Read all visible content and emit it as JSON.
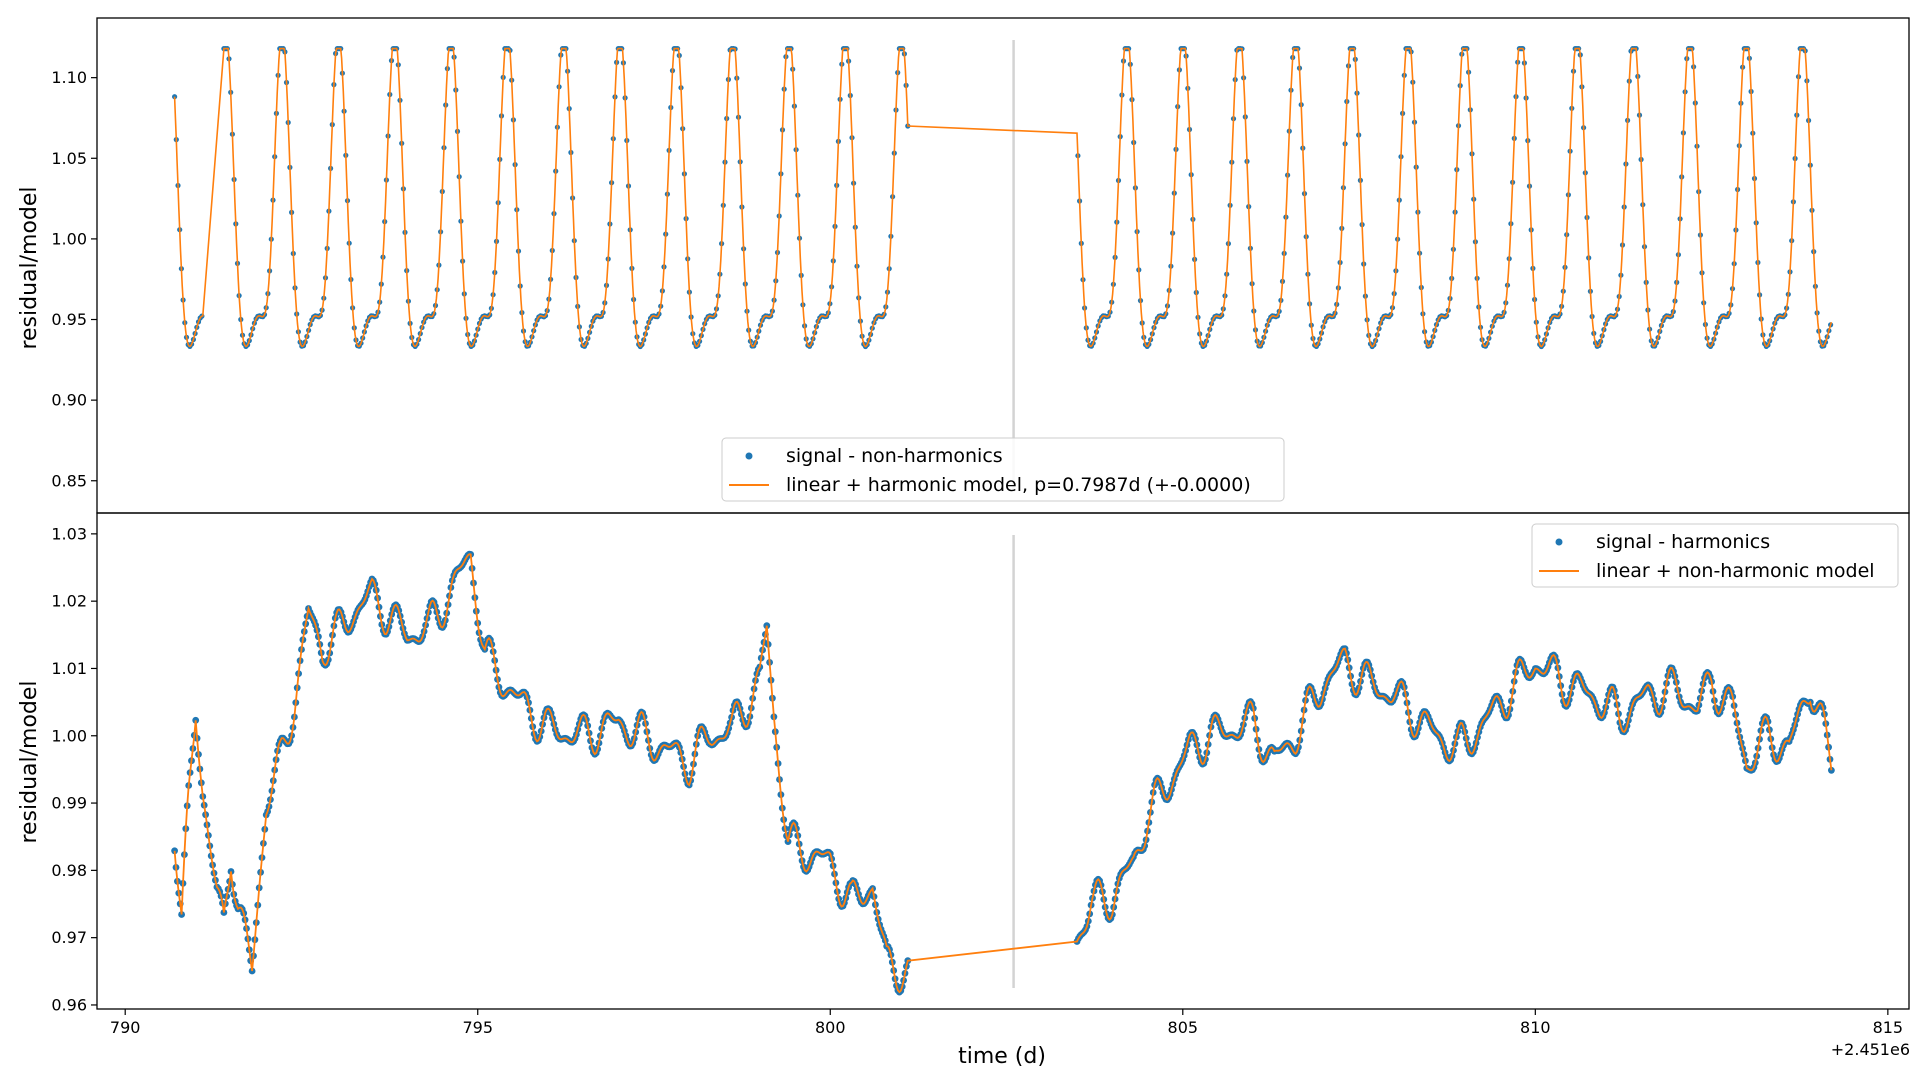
{
  "chart_data": [
    {
      "type": "line",
      "panel": "top",
      "ylabel": "residual/model",
      "xlim": [
        789.6,
        815.3
      ],
      "ylim": [
        0.83,
        1.137
      ],
      "yticks": [
        0.85,
        0.9,
        0.95,
        1.0,
        1.05,
        1.1
      ],
      "ytick_labels": [
        "0.85",
        "0.90",
        "0.95",
        "1.00",
        "1.05",
        "1.10"
      ],
      "grid": false,
      "vline_x": 802.6,
      "legend": {
        "placement": "lower center"
      },
      "period_d": 0.7987,
      "segments": [
        [
          790.7,
          791.1
        ],
        [
          791.4,
          801.1
        ],
        [
          803.5,
          814.2
        ]
      ],
      "series": [
        {
          "name": "signal - non-harmonics",
          "kind": "scatter",
          "color": "#1f77b4"
        },
        {
          "name": "linear + harmonic model, p=0.7987d (+-0.0000)",
          "kind": "line",
          "color": "#ff7f0e"
        }
      ]
    },
    {
      "type": "line",
      "panel": "bottom",
      "xlabel": "time (d)",
      "ylabel": "residual/model",
      "xlim": [
        789.6,
        815.3
      ],
      "ylim": [
        0.9594,
        1.0331
      ],
      "xticks": [
        790,
        795,
        800,
        805,
        810,
        815
      ],
      "xtick_labels": [
        "790",
        "795",
        "800",
        "805",
        "810",
        "815"
      ],
      "x_offset_label": "+2.451e6",
      "yticks": [
        0.96,
        0.97,
        0.98,
        0.99,
        1.0,
        1.01,
        1.02,
        1.03
      ],
      "ytick_labels": [
        "0.96",
        "0.97",
        "0.98",
        "0.99",
        "1.00",
        "1.01",
        "1.02",
        "1.03"
      ],
      "grid": false,
      "vline_x": 802.6,
      "legend": {
        "placement": "upper right"
      },
      "series": [
        {
          "name": "signal - harmonics",
          "kind": "scatter",
          "color": "#1f77b4"
        },
        {
          "name": "linear + non-harmonic model",
          "kind": "line",
          "color": "#ff7f0e"
        }
      ],
      "trend_x": [
        790.7,
        790.8,
        790.9,
        791.0,
        791.1,
        791.3,
        791.4,
        791.5,
        791.6,
        791.8,
        791.9,
        792.0,
        792.2,
        792.4,
        792.6,
        792.8,
        793.0,
        793.2,
        793.5,
        793.8,
        794.0,
        794.3,
        794.6,
        794.9,
        795.1,
        795.3,
        795.6,
        796.0,
        796.5,
        797.0,
        797.5,
        798.0,
        798.3,
        798.6,
        799.0,
        799.1,
        799.2,
        799.4,
        799.6,
        800.0,
        800.3,
        800.6,
        800.8,
        801.1,
        803.5,
        803.7,
        804.0,
        804.3,
        804.5,
        804.8,
        805.1,
        805.4,
        805.7,
        806.0,
        806.3,
        806.6,
        807.0,
        807.3,
        807.6,
        808.0,
        808.3,
        808.6,
        808.9,
        809.2,
        809.6,
        810.0,
        810.4,
        810.8,
        811.2,
        811.6,
        812.0,
        812.3,
        812.5,
        812.8,
        813.0,
        813.3,
        813.6,
        813.9,
        814.2
      ],
      "trend_y": [
        0.986,
        0.972,
        0.99,
        1.004,
        0.992,
        0.976,
        0.972,
        0.983,
        0.975,
        0.965,
        0.978,
        0.99,
        0.996,
        1.005,
        1.018,
        1.013,
        1.015,
        1.018,
        1.021,
        1.017,
        1.015,
        1.016,
        1.021,
        1.027,
        1.012,
        1.009,
        1.005,
        1.001,
        1.0,
        1.002,
        0.999,
        0.996,
        1.0,
        1.001,
        1.008,
        1.016,
        1.003,
        0.984,
        0.983,
        0.981,
        0.975,
        0.978,
        0.966,
        0.965,
        0.97,
        0.975,
        0.976,
        0.981,
        0.988,
        0.993,
        0.998,
        1.0,
        1.001,
        1.002,
        0.996,
        1.0,
        1.008,
        1.011,
        1.008,
        1.006,
        1.003,
        1.0,
        0.998,
        1.001,
        1.006,
        1.011,
        1.008,
        1.006,
        1.003,
        1.006,
        1.007,
        1.004,
        1.008,
        1.004,
        0.996,
        1.0,
        0.998,
        1.008,
        0.996
      ]
    }
  ]
}
